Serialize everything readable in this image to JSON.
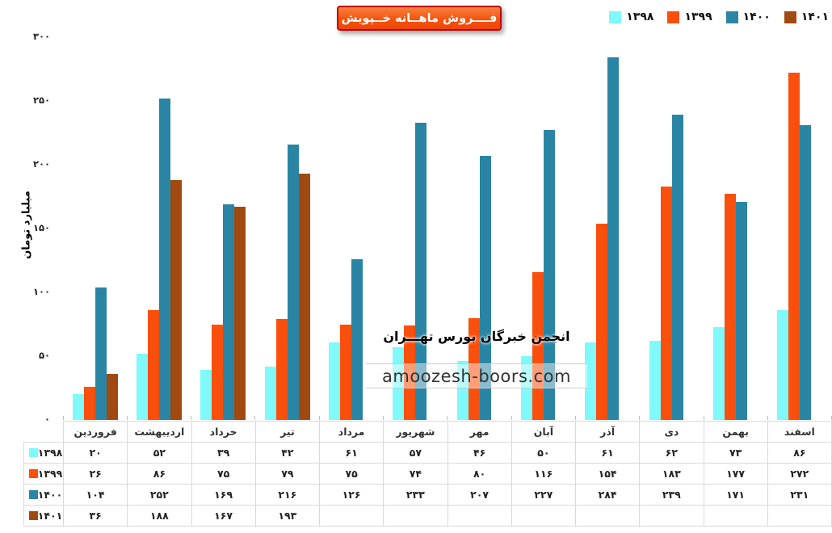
{
  "title": "فــــروش ماهــانه خــپویش",
  "watermark": {
    "association": "انجمن خبرگان بورس تهـــران",
    "website": "amoozesh-boors.com"
  },
  "chart_data": {
    "type": "bar",
    "title": "فروش ماهانه خپویش",
    "xlabel": "",
    "ylabel": "میلیارد تومان",
    "ylim": [
      0,
      300
    ],
    "yticks": [
      0,
      50,
      100,
      150,
      200,
      250,
      300
    ],
    "grid": false,
    "legend_position": "top-right",
    "categories": [
      "فروردین",
      "اردیبهشت",
      "خرداد",
      "تیر",
      "مرداد",
      "شهریور",
      "مهر",
      "آبان",
      "آذر",
      "دی",
      "بهمن",
      "اسفند"
    ],
    "series": [
      {
        "name": "۱۳۹۸",
        "color": "#7ff9fa",
        "values": [
          20,
          52,
          39,
          42,
          61,
          57,
          46,
          50,
          61,
          62,
          73,
          86
        ]
      },
      {
        "name": "۱۳۹۹",
        "color": "#fb4f0e",
        "values": [
          26,
          86,
          75,
          79,
          75,
          74,
          80,
          116,
          154,
          183,
          177,
          272
        ]
      },
      {
        "name": "۱۴۰۰",
        "color": "#2a85a4",
        "values": [
          104,
          252,
          169,
          216,
          126,
          233,
          207,
          227,
          284,
          239,
          171,
          231
        ]
      },
      {
        "name": "۱۴۰۱",
        "color": "#a04a12",
        "values": [
          36,
          188,
          167,
          193,
          null,
          null,
          null,
          null,
          null,
          null,
          null,
          null
        ]
      }
    ]
  }
}
